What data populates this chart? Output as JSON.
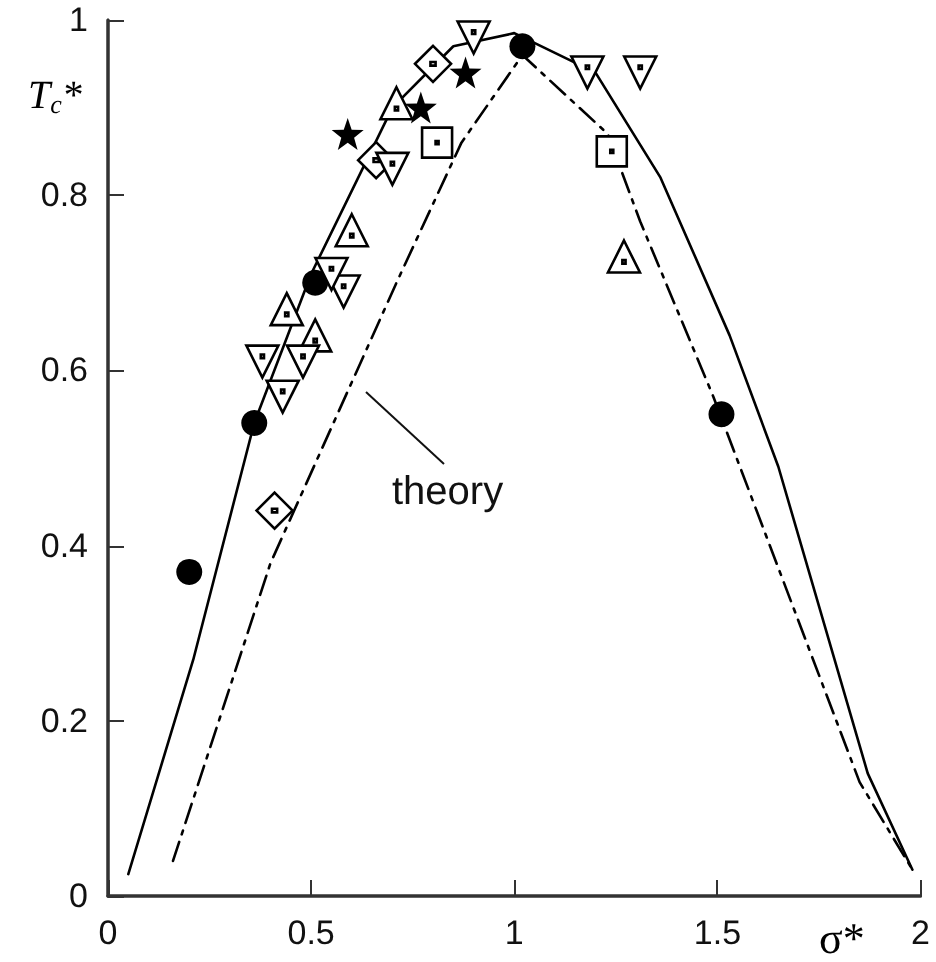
{
  "chart_data": {
    "type": "scatter",
    "xlabel": "σ*",
    "ylabel": "T$_{c}$*",
    "xlim": [
      0,
      2
    ],
    "ylim": [
      0,
      1
    ],
    "xticks": [
      0,
      0.5,
      1,
      1.5,
      2
    ],
    "yticks": [
      0,
      0.2,
      0.4,
      0.6,
      0.8,
      1
    ],
    "grid": false,
    "series": [
      {
        "color": "#000000",
        "marker": "circle",
        "x": [
          0.2,
          0.36,
          0.51,
          1.02,
          1.51
        ],
        "values": [
          0.37,
          0.54,
          0.7,
          0.97,
          0.55
        ]
      },
      {
        "color": "#000000",
        "marker": "star",
        "x": [
          0.59,
          0.77,
          0.88
        ],
        "values": [
          0.87,
          0.9,
          0.94
        ]
      },
      {
        "color": "#000000",
        "marker": "triangle",
        "x": [
          0.71,
          0.6,
          0.44,
          0.51,
          1.27
        ],
        "values": [
          0.905,
          0.76,
          0.67,
          0.64,
          0.73
        ]
      },
      {
        "color": "#000000",
        "marker": "diamond",
        "x": [
          0.8,
          0.66,
          0.41
        ],
        "values": [
          0.95,
          0.84,
          0.44
        ]
      },
      {
        "color": "#000000",
        "marker": "triangle-down",
        "x": [
          0.7,
          0.38,
          0.43,
          0.48,
          0.58,
          0.55,
          0.9,
          1.18,
          1.31
        ],
        "values": [
          0.83,
          0.61,
          0.57,
          0.61,
          0.69,
          0.71,
          0.98,
          0.94,
          0.94
        ]
      },
      {
        "color": "#000000",
        "marker": "square",
        "x": [
          0.81,
          1.24
        ],
        "values": [
          0.86,
          0.85
        ]
      },
      {
        "type": "line",
        "color": "#000000",
        "marker": "none",
        "line_style": "solid",
        "x": [
          0.05,
          0.21,
          0.36,
          0.5,
          0.7,
          0.85,
          1.0,
          1.2,
          1.36,
          1.53,
          1.65,
          1.87,
          1.98
        ],
        "values": [
          0.025,
          0.27,
          0.54,
          0.71,
          0.9,
          0.97,
          0.985,
          0.94,
          0.82,
          0.64,
          0.49,
          0.14,
          0.03
        ]
      },
      {
        "type": "line",
        "color": "#000000",
        "marker": "none",
        "line_style": "dashed",
        "x": [
          0.16,
          0.4,
          0.71,
          0.87,
          1.02,
          1.23,
          1.31,
          1.49,
          1.85,
          1.98
        ],
        "values": [
          0.04,
          0.38,
          0.7,
          0.86,
          0.96,
          0.87,
          0.77,
          0.57,
          0.13,
          0.03
        ]
      }
    ],
    "annotations": [
      "theory"
    ]
  }
}
